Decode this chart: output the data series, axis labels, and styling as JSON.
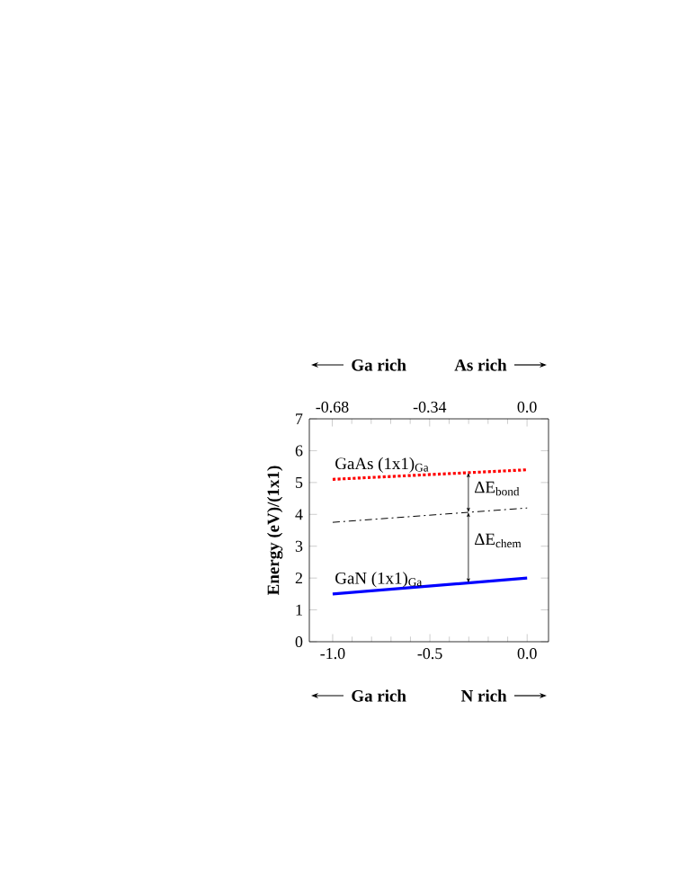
{
  "chart_data": {
    "type": "line",
    "ylabel": "Energy (eV)/(1x1)",
    "xlim": [
      -1.12,
      0.11
    ],
    "xticks": [
      {
        "value": -1,
        "label": "-1.0"
      },
      {
        "value": -0.5,
        "label": "-0.5"
      },
      {
        "value": 0,
        "label": "0.0"
      }
    ],
    "x2lim": [
      -0.76,
      0.075
    ],
    "x2ticks": [
      {
        "value": -0.68,
        "label": "-0.68"
      },
      {
        "value": -0.34,
        "label": "-0.34"
      },
      {
        "value": 0,
        "label": "0.0"
      }
    ],
    "ylim": [
      0,
      7
    ],
    "yticks": [
      0,
      1,
      2,
      3,
      4,
      5,
      6,
      7
    ],
    "marker": "none",
    "x": [
      -1.0,
      0.0
    ],
    "series": [
      {
        "name": "GaAs (1x1)$_{Ga}$",
        "color": "#ff0000",
        "line_style": "dotted",
        "values": [
          5.1,
          5.4
        ]
      },
      {
        "color": "#000000",
        "line_style": "dashed",
        "values": [
          3.75,
          4.2
        ]
      },
      {
        "name": "GaN (1x1)$_{Ga}$",
        "color": "#0000ff",
        "line_style": "solid",
        "values": [
          1.5,
          2.0
        ]
      }
    ],
    "annotations": [
      "ΔE$_{bond}$",
      "ΔE$_{chem}$",
      "Ga rich",
      "As rich",
      "Ga rich",
      "N rich"
    ]
  }
}
